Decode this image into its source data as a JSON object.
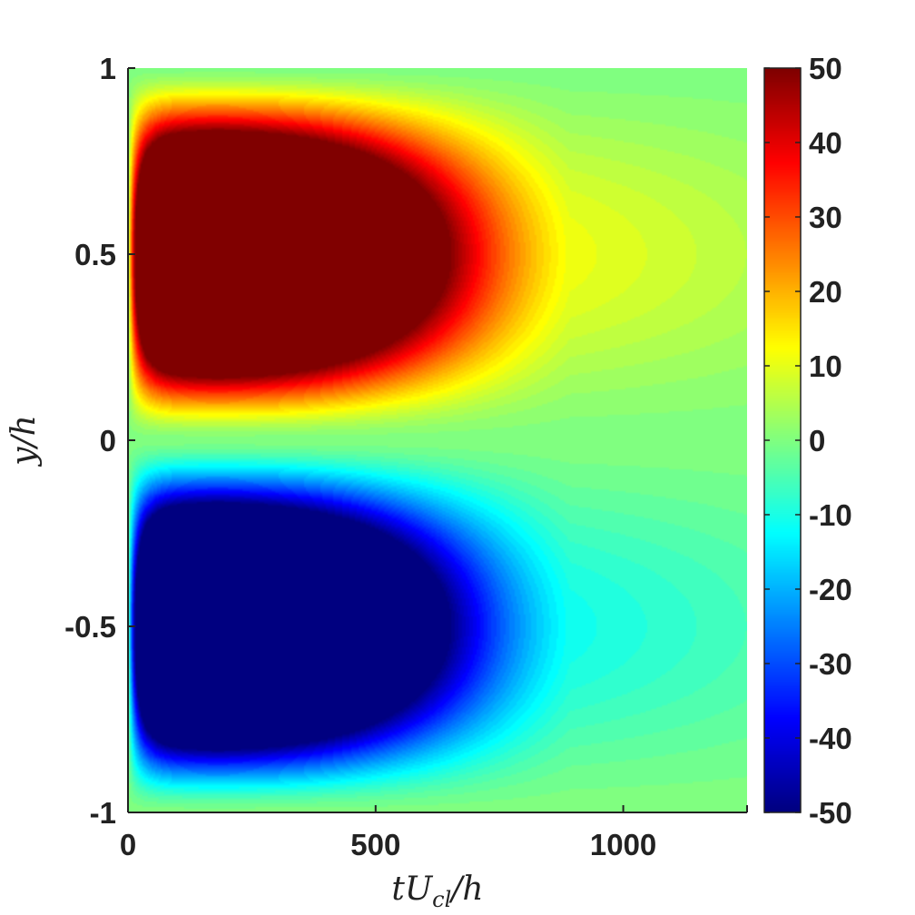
{
  "chart_data": {
    "type": "heatmap",
    "title": "",
    "xlabel": "tU_cl/h",
    "xlabel_parts": {
      "base": "tU",
      "subscript": "cl",
      "rest": "/h"
    },
    "ylabel": "y/h",
    "xlim": [
      0,
      1250
    ],
    "ylim": [
      -1,
      1
    ],
    "xticks": [
      0,
      500,
      1000
    ],
    "xtick_labels": [
      "0",
      "500",
      "1000"
    ],
    "yticks": [
      -1,
      -0.5,
      0,
      0.5,
      1
    ],
    "ytick_labels": [
      "-1",
      "-0.5",
      "0",
      "0.5",
      "1"
    ],
    "colorbar": {
      "colormap": "jet",
      "clim": [
        -50,
        50
      ],
      "ticks": [
        50,
        40,
        30,
        20,
        10,
        0,
        -10,
        -20,
        -30,
        -40,
        -50
      ],
      "tick_labels": [
        "50",
        "40",
        "30",
        "20",
        "10",
        "0",
        "-10",
        "-20",
        "-30",
        "-40",
        "-50"
      ]
    },
    "field": {
      "description_of_data": "Antisymmetric field: positive lobe centered near y/h=0.5, negative lobe near y/h=-0.5; saturated (|value|>=50) for tU_cl/h from ~20 to ~750, decaying toward 0 for larger times; value 0 at y/h=0 and y/h=±1",
      "peak_time": 280,
      "saturated_until": 750,
      "value_at_end_on_lobe_center": 12,
      "lobe_centers": [
        0.5,
        -0.5
      ]
    },
    "grid": false
  }
}
